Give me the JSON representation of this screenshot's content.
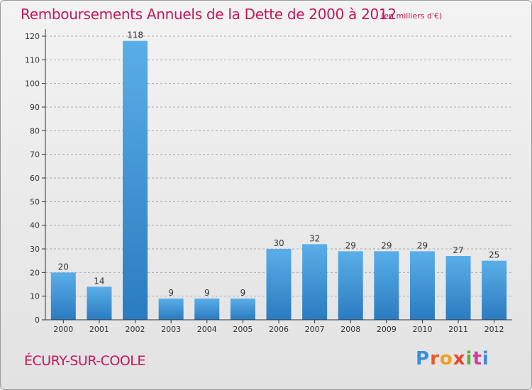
{
  "header": {
    "title": "Remboursements Annuels de la Dette de 2000 à 2012",
    "subtitle": "(en milliers d'€)"
  },
  "footer": {
    "commune": "ÉCURY-SUR-COOLE",
    "brand": [
      "P",
      "r",
      "o",
      "x",
      "i",
      "t",
      "i"
    ]
  },
  "colors": {
    "title": "#c2185b",
    "bar_top": "#5aaee8",
    "bar_bottom": "#2a7bc0",
    "axis": "#333333",
    "grid": "#aaaaaa"
  },
  "chart_data": {
    "type": "bar",
    "title": "Remboursements Annuels de la Dette de 2000 à 2012",
    "subtitle": "(en milliers d'€)",
    "categories": [
      "2000",
      "2001",
      "2002",
      "2003",
      "2004",
      "2005",
      "2006",
      "2007",
      "2008",
      "2009",
      "2010",
      "2011",
      "2012"
    ],
    "values": [
      20,
      14,
      118,
      9,
      9,
      9,
      30,
      32,
      29,
      29,
      29,
      27,
      25
    ],
    "ylim": [
      0,
      120
    ],
    "yticks": [
      0,
      10,
      20,
      30,
      40,
      50,
      60,
      70,
      80,
      90,
      100,
      110,
      120
    ],
    "grid": true,
    "legend": "none"
  }
}
